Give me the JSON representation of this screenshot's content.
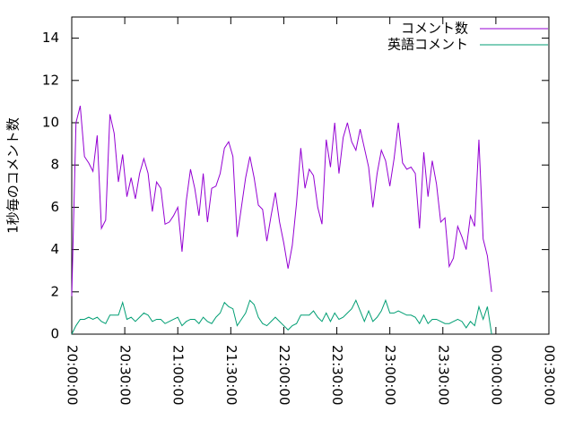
{
  "chart_data": {
    "type": "line",
    "ylabel": "1秒毎のコメント数",
    "legend": "top-right",
    "x": [
      0,
      2.4,
      4.8,
      7.2,
      9.6,
      12,
      14.4,
      16.8,
      19.2,
      21.6,
      24,
      26.4,
      28.8,
      31.2,
      33.6,
      36,
      38.4,
      40.8,
      43.2,
      45.6,
      48,
      50.4,
      52.8,
      55.2,
      57.6,
      60,
      62.4,
      64.8,
      67.2,
      69.6,
      72,
      74.4,
      76.8,
      79.2,
      81.6,
      84,
      86.4,
      88.8,
      91.2,
      93.6,
      96,
      98.4,
      100.8,
      103.2,
      105.6,
      108,
      110.4,
      112.8,
      115.2,
      117.6,
      120,
      122.4,
      124.8,
      127.2,
      129.6,
      132,
      134.4,
      136.8,
      139.2,
      141.6,
      144,
      146.4,
      148.8,
      151.2,
      153.6,
      156,
      158.4,
      160.8,
      163.2,
      165.6,
      168,
      170.4,
      172.8,
      175.2,
      177.6,
      180,
      182.4,
      184.8,
      187.2,
      189.6,
      192,
      194.4,
      196.8,
      199.2,
      201.6,
      204,
      206.4,
      208.8,
      211.2,
      213.6,
      216,
      218.4,
      220.8,
      223.2,
      225.6,
      228,
      230.4,
      232.8,
      235.2,
      237.6
    ],
    "series": [
      {
        "name": "コメント数",
        "color": "#9400d3",
        "values": [
          1.8,
          10.0,
          10.8,
          8.4,
          8.1,
          7.7,
          9.4,
          5.0,
          5.4,
          10.4,
          9.5,
          7.2,
          8.5,
          6.5,
          7.4,
          6.4,
          7.6,
          8.3,
          7.6,
          5.8,
          7.2,
          6.9,
          5.2,
          5.3,
          5.6,
          6.0,
          3.9,
          6.3,
          7.8,
          6.9,
          5.6,
          7.6,
          5.3,
          6.9,
          7.0,
          7.6,
          8.8,
          9.1,
          8.4,
          4.6,
          6.0,
          7.4,
          8.4,
          7.4,
          6.1,
          5.9,
          4.4,
          5.6,
          6.7,
          5.3,
          4.3,
          3.1,
          4.2,
          6.2,
          8.8,
          6.9,
          7.8,
          7.5,
          6.0,
          5.2,
          9.2,
          7.9,
          10.0,
          7.6,
          9.3,
          10.0,
          9.1,
          8.7,
          9.7,
          8.8,
          7.9,
          6.0,
          7.6,
          8.7,
          8.2,
          7.0,
          8.3,
          10.0,
          8.1,
          7.8,
          7.9,
          7.6,
          5.0,
          8.6,
          6.5,
          8.2,
          7.1,
          5.3,
          5.5,
          3.2,
          3.6,
          5.1,
          4.6,
          4.0,
          5.6,
          5.1,
          9.2,
          4.5,
          3.7,
          2.0
        ]
      },
      {
        "name": "英語コメント",
        "color": "#009e73",
        "values": [
          0.0,
          0.4,
          0.7,
          0.7,
          0.8,
          0.7,
          0.8,
          0.6,
          0.5,
          0.9,
          0.9,
          0.9,
          1.5,
          0.7,
          0.8,
          0.6,
          0.8,
          1.0,
          0.9,
          0.6,
          0.7,
          0.7,
          0.5,
          0.6,
          0.7,
          0.8,
          0.4,
          0.6,
          0.7,
          0.7,
          0.5,
          0.8,
          0.6,
          0.5,
          0.8,
          1.0,
          1.5,
          1.3,
          1.2,
          0.4,
          0.7,
          1.0,
          1.6,
          1.4,
          0.8,
          0.5,
          0.4,
          0.6,
          0.8,
          0.6,
          0.4,
          0.2,
          0.4,
          0.5,
          0.9,
          0.9,
          0.9,
          1.1,
          0.8,
          0.6,
          1.0,
          0.6,
          1.0,
          0.7,
          0.8,
          1.0,
          1.2,
          1.6,
          1.1,
          0.6,
          1.1,
          0.6,
          0.8,
          1.1,
          1.6,
          1.0,
          1.0,
          1.1,
          1.0,
          0.9,
          0.9,
          0.8,
          0.5,
          0.9,
          0.5,
          0.7,
          0.7,
          0.6,
          0.5,
          0.5,
          0.6,
          0.7,
          0.6,
          0.3,
          0.6,
          0.4,
          1.3,
          0.7,
          1.3,
          0.0
        ]
      }
    ],
    "xlim": [
      0,
      270
    ],
    "xticks": [
      {
        "value": 0,
        "label": "20:00:00"
      },
      {
        "value": 30,
        "label": "20:30:00"
      },
      {
        "value": 60,
        "label": "21:00:00"
      },
      {
        "value": 90,
        "label": "21:30:00"
      },
      {
        "value": 120,
        "label": "22:00:00"
      },
      {
        "value": 150,
        "label": "22:30:00"
      },
      {
        "value": 180,
        "label": "23:00:00"
      },
      {
        "value": 210,
        "label": "23:30:00"
      },
      {
        "value": 240,
        "label": "00:00:00"
      },
      {
        "value": 270,
        "label": "00:30:00"
      }
    ],
    "ylim": [
      0,
      15
    ],
    "yticks": [
      0,
      2,
      4,
      6,
      8,
      10,
      12,
      14
    ]
  }
}
